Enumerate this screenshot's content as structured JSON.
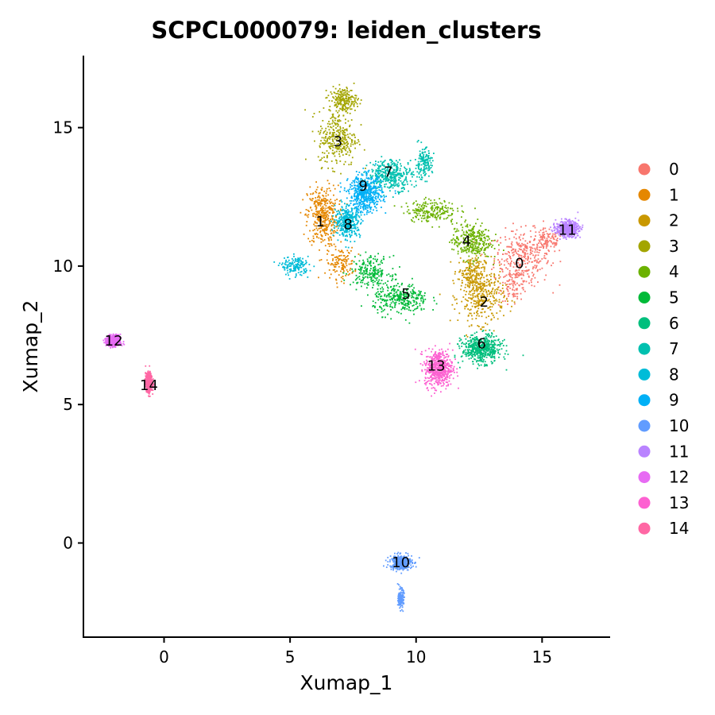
{
  "chart_data": {
    "type": "scatter",
    "title": "SCPCL000079: leiden_clusters",
    "xlabel": "Xumap_1",
    "ylabel": "Xumap_2",
    "xlim": [
      -3.2,
      17.7
    ],
    "ylim": [
      -3.4,
      17.6
    ],
    "x_ticks": [
      0,
      5,
      10,
      15
    ],
    "y_ticks": [
      0,
      5,
      10,
      15
    ],
    "grid": false,
    "legend": "right",
    "point_size": "small",
    "clusters": [
      {
        "name": "0",
        "color": "#F8766D",
        "label_pos": [
          14.1,
          10.1
        ],
        "blobs": [
          [
            14.2,
            10.3,
            1.0,
            0.9,
            0.62
          ],
          [
            15.2,
            10.9,
            0.6,
            0.4,
            0.22
          ],
          [
            13.9,
            9.3,
            0.5,
            0.5,
            0.16
          ]
        ]
      },
      {
        "name": "1",
        "color": "#E58700",
        "label_pos": [
          6.2,
          11.6
        ],
        "blobs": [
          [
            6.3,
            11.8,
            0.55,
            1.0,
            0.75
          ],
          [
            7.0,
            10.1,
            0.5,
            0.5,
            0.25
          ]
        ]
      },
      {
        "name": "2",
        "color": "#C99800",
        "label_pos": [
          12.7,
          8.7
        ],
        "blobs": [
          [
            12.6,
            8.9,
            0.8,
            0.9,
            0.7
          ],
          [
            12.2,
            9.8,
            0.5,
            0.5,
            0.3
          ]
        ]
      },
      {
        "name": "3",
        "color": "#A3A500",
        "label_pos": [
          6.9,
          14.5
        ],
        "blobs": [
          [
            6.9,
            14.6,
            0.7,
            0.9,
            0.6
          ],
          [
            7.1,
            16.0,
            0.5,
            0.4,
            0.4
          ]
        ]
      },
      {
        "name": "4",
        "color": "#6BB100",
        "label_pos": [
          12.0,
          10.9
        ],
        "blobs": [
          [
            12.2,
            10.9,
            0.7,
            0.6,
            0.6
          ],
          [
            10.6,
            12.0,
            0.9,
            0.35,
            0.4
          ]
        ]
      },
      {
        "name": "5",
        "color": "#00BA38",
        "label_pos": [
          9.6,
          9.0
        ],
        "blobs": [
          [
            9.4,
            8.8,
            1.0,
            0.5,
            0.6
          ],
          [
            8.2,
            9.8,
            0.7,
            0.5,
            0.4
          ]
        ]
      },
      {
        "name": "6",
        "color": "#00BF7D",
        "label_pos": [
          12.6,
          7.2
        ],
        "blobs": [
          [
            12.6,
            7.0,
            0.7,
            0.45,
            1.0
          ]
        ]
      },
      {
        "name": "7",
        "color": "#00C0AF",
        "label_pos": [
          8.9,
          13.4
        ],
        "blobs": [
          [
            9.0,
            13.3,
            0.8,
            0.5,
            0.7
          ],
          [
            10.3,
            13.7,
            0.3,
            0.5,
            0.3
          ]
        ]
      },
      {
        "name": "8",
        "color": "#00BCD8",
        "label_pos": [
          7.3,
          11.5
        ],
        "blobs": [
          [
            7.3,
            11.6,
            0.45,
            0.5,
            0.7
          ],
          [
            5.2,
            10.0,
            0.5,
            0.3,
            0.3
          ]
        ]
      },
      {
        "name": "9",
        "color": "#00B0F6",
        "label_pos": [
          7.9,
          12.9
        ],
        "blobs": [
          [
            8.0,
            12.6,
            0.6,
            0.6,
            1.0
          ]
        ]
      },
      {
        "name": "10",
        "color": "#619CFF",
        "label_pos": [
          9.4,
          -0.7
        ],
        "blobs": [
          [
            9.4,
            -0.7,
            0.4,
            0.25,
            0.7
          ],
          [
            9.4,
            -2.0,
            0.1,
            0.3,
            0.3
          ]
        ]
      },
      {
        "name": "11",
        "color": "#B983FF",
        "label_pos": [
          16.0,
          11.3
        ],
        "blobs": [
          [
            16.0,
            11.35,
            0.4,
            0.25,
            1.0
          ]
        ]
      },
      {
        "name": "12",
        "color": "#E76BF3",
        "label_pos": [
          -2.0,
          7.3
        ],
        "blobs": [
          [
            -2.0,
            7.3,
            0.25,
            0.18,
            1.0
          ]
        ]
      },
      {
        "name": "13",
        "color": "#FD61D1",
        "label_pos": [
          10.8,
          6.4
        ],
        "blobs": [
          [
            10.9,
            6.3,
            0.5,
            0.6,
            1.0
          ]
        ]
      },
      {
        "name": "14",
        "color": "#FF67A4",
        "label_pos": [
          -0.6,
          5.7
        ],
        "blobs": [
          [
            -0.6,
            5.8,
            0.12,
            0.3,
            1.0
          ]
        ]
      }
    ]
  }
}
